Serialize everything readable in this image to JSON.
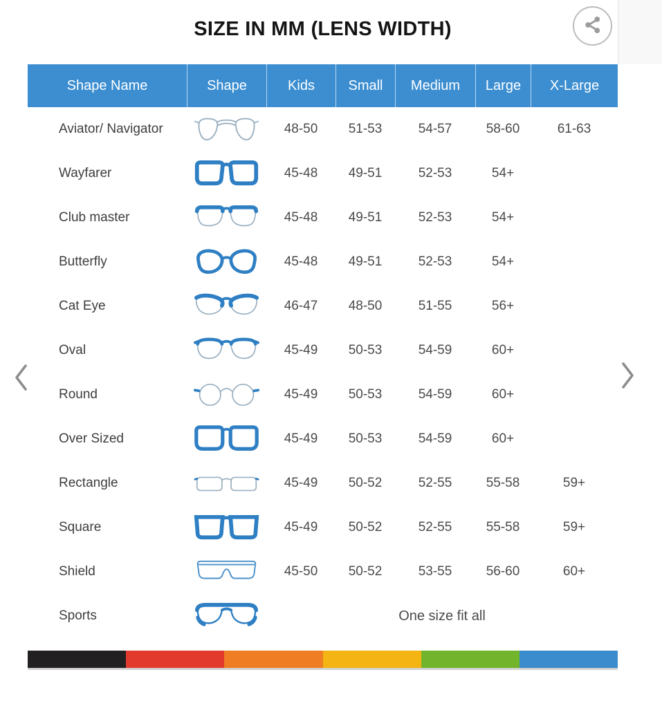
{
  "chart_data": {
    "type": "table",
    "title": "SIZE IN MM (LENS WIDTH)",
    "columns": [
      "Shape Name",
      "Shape",
      "Kids",
      "Small",
      "Medium",
      "Large",
      "X-Large"
    ],
    "rows": [
      {
        "name": "Aviator/ Navigator",
        "icon": "aviator-glasses-icon",
        "sizes": [
          "48-50",
          "51-53",
          "54-57",
          "58-60",
          "61-63"
        ]
      },
      {
        "name": "Wayfarer",
        "icon": "wayfarer-glasses-icon",
        "sizes": [
          "45-48",
          "49-51",
          "52-53",
          "54+"
        ]
      },
      {
        "name": "Club master",
        "icon": "clubmaster-glasses-icon",
        "sizes": [
          "45-48",
          "49-51",
          "52-53",
          "54+"
        ]
      },
      {
        "name": "Butterfly",
        "icon": "butterfly-glasses-icon",
        "sizes": [
          "45-48",
          "49-51",
          "52-53",
          "54+"
        ]
      },
      {
        "name": "Cat Eye",
        "icon": "cateye-glasses-icon",
        "sizes": [
          "46-47",
          "48-50",
          "51-55",
          "56+"
        ]
      },
      {
        "name": "Oval",
        "icon": "oval-glasses-icon",
        "sizes": [
          "45-49",
          "50-53",
          "54-59",
          "60+"
        ]
      },
      {
        "name": "Round",
        "icon": "round-glasses-icon",
        "sizes": [
          "45-49",
          "50-53",
          "54-59",
          "60+"
        ]
      },
      {
        "name": "Over Sized",
        "icon": "oversized-glasses-icon",
        "sizes": [
          "45-49",
          "50-53",
          "54-59",
          "60+"
        ]
      },
      {
        "name": "Rectangle",
        "icon": "rectangle-glasses-icon",
        "sizes": [
          "45-49",
          "50-52",
          "52-55",
          "55-58",
          "59+"
        ]
      },
      {
        "name": "Square",
        "icon": "square-glasses-icon",
        "sizes": [
          "45-49",
          "50-52",
          "52-55",
          "55-58",
          "59+"
        ]
      },
      {
        "name": "Shield",
        "icon": "shield-glasses-icon",
        "sizes": [
          "45-50",
          "50-52",
          "53-55",
          "56-60",
          "60+"
        ]
      },
      {
        "name": "Sports",
        "icon": "sports-glasses-icon",
        "sizes": [],
        "span_text": "One size fit all"
      }
    ]
  },
  "icons": {
    "share": "share-icon",
    "prev": "chevron-left-icon",
    "next": "chevron-right-icon"
  },
  "colors": {
    "header_bg": "#3c8ed1",
    "header_text": "#ffffff",
    "glasses_blue": "#2e7fc3",
    "thin_frame_gray": "#9bb0c0",
    "stripe": [
      "#232021",
      "#e23b2e",
      "#ef7d23",
      "#f3b414",
      "#72b42c",
      "#3a8ccd"
    ]
  }
}
